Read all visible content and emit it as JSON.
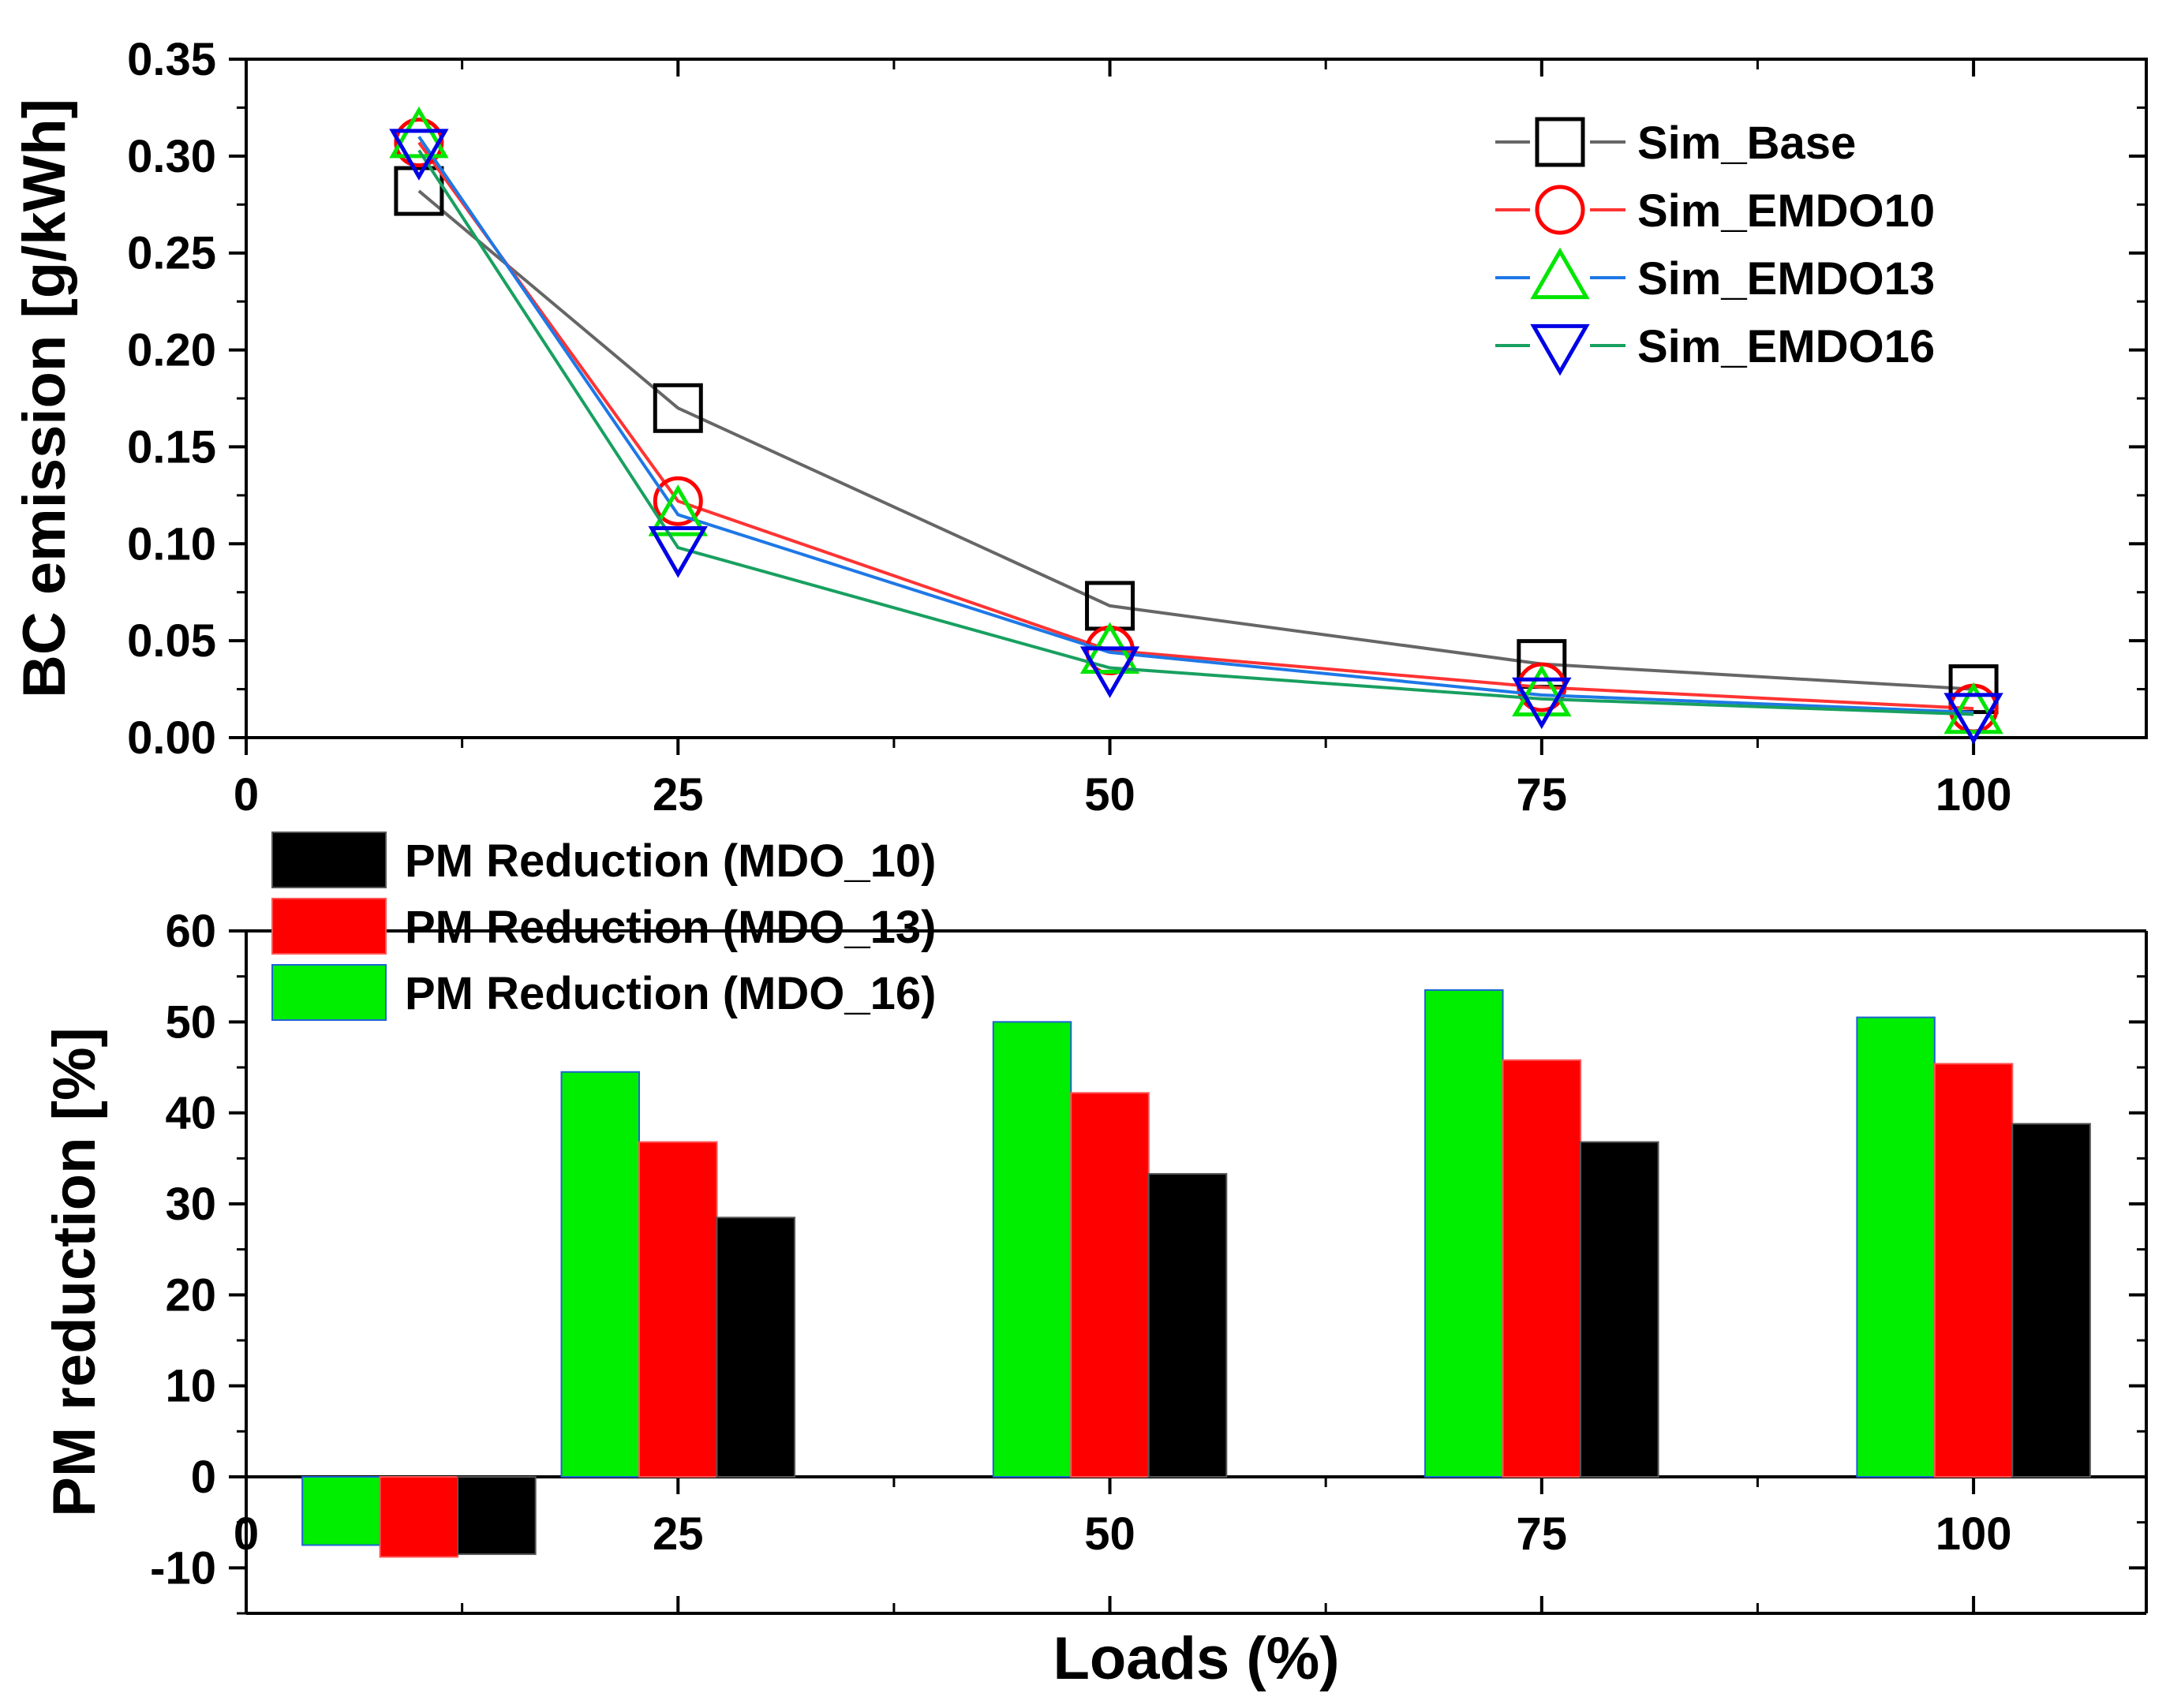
{
  "chart_data": [
    {
      "type": "line",
      "title": "",
      "xlabel": "",
      "ylabel": "BC emission [g/kWh]",
      "xlim": [
        0,
        110
      ],
      "ylim": [
        0,
        0.35
      ],
      "xticks": [
        0,
        25,
        50,
        75,
        100
      ],
      "xtick_labels": [
        "0",
        "25",
        "50",
        "75",
        "100"
      ],
      "yticks": [
        0.0,
        0.05,
        0.1,
        0.15,
        0.2,
        0.25,
        0.3,
        0.35
      ],
      "ytick_labels": [
        "0.00",
        "0.05",
        "0.10",
        "0.15",
        "0.20",
        "0.25",
        "0.30",
        "0.35"
      ],
      "legend_position": "top-right",
      "x": [
        10,
        25,
        50,
        75,
        100
      ],
      "series": [
        {
          "name": "Sim_Base",
          "values": [
            0.282,
            0.17,
            0.068,
            0.038,
            0.025
          ],
          "line_color": "#666666",
          "marker_color": "#000000",
          "marker": "square"
        },
        {
          "name": "Sim_EMDO10",
          "values": [
            0.307,
            0.122,
            0.045,
            0.026,
            0.015
          ],
          "line_color": "#ff3333",
          "marker_color": "#ff0000",
          "marker": "circle"
        },
        {
          "name": "Sim_EMDO13",
          "values": [
            0.31,
            0.115,
            0.044,
            0.022,
            0.013
          ],
          "line_color": "#1e78e6",
          "marker_color": "#00e600",
          "marker": "triangle-up"
        },
        {
          "name": "Sim_EMDO16",
          "values": [
            0.303,
            0.098,
            0.036,
            0.02,
            0.012
          ],
          "line_color": "#18a060",
          "marker_color": "#0000e6",
          "marker": "triangle-down"
        }
      ]
    },
    {
      "type": "bar",
      "title": "",
      "xlabel": "Loads (%)",
      "ylabel": "PM reduction [%]",
      "xlim": [
        0,
        110
      ],
      "ylim": [
        -15,
        60
      ],
      "xticks": [
        0,
        25,
        50,
        75,
        100
      ],
      "xtick_labels": [
        "0",
        "25",
        "50",
        "75",
        "100"
      ],
      "yticks": [
        -10,
        0,
        10,
        20,
        30,
        40,
        50,
        60
      ],
      "ytick_labels": [
        "-10",
        "0",
        "10",
        "20",
        "30",
        "40",
        "50",
        "60"
      ],
      "legend_position": "top-left",
      "categories": [
        "10",
        "25",
        "50",
        "75",
        "100"
      ],
      "category_x": [
        10,
        25,
        50,
        75,
        100
      ],
      "series": [
        {
          "name": "PM Reduction  (MDO_16)",
          "values": [
            -7.5,
            44.5,
            50.0,
            53.5,
            50.5
          ],
          "color": "#00ee00",
          "edge": "#1e64d2"
        },
        {
          "name": "PM Reduction  (MDO_13)",
          "values": [
            -8.8,
            36.8,
            42.2,
            45.8,
            45.4
          ],
          "color": "#ff0000",
          "edge": "#ff5555"
        },
        {
          "name": "PM Reduction  (MDO_10)",
          "values": [
            -8.5,
            28.5,
            33.3,
            36.8,
            38.8
          ],
          "color": "#000000",
          "edge": "#555555"
        }
      ],
      "legend_order": [
        2,
        1,
        0
      ]
    }
  ]
}
